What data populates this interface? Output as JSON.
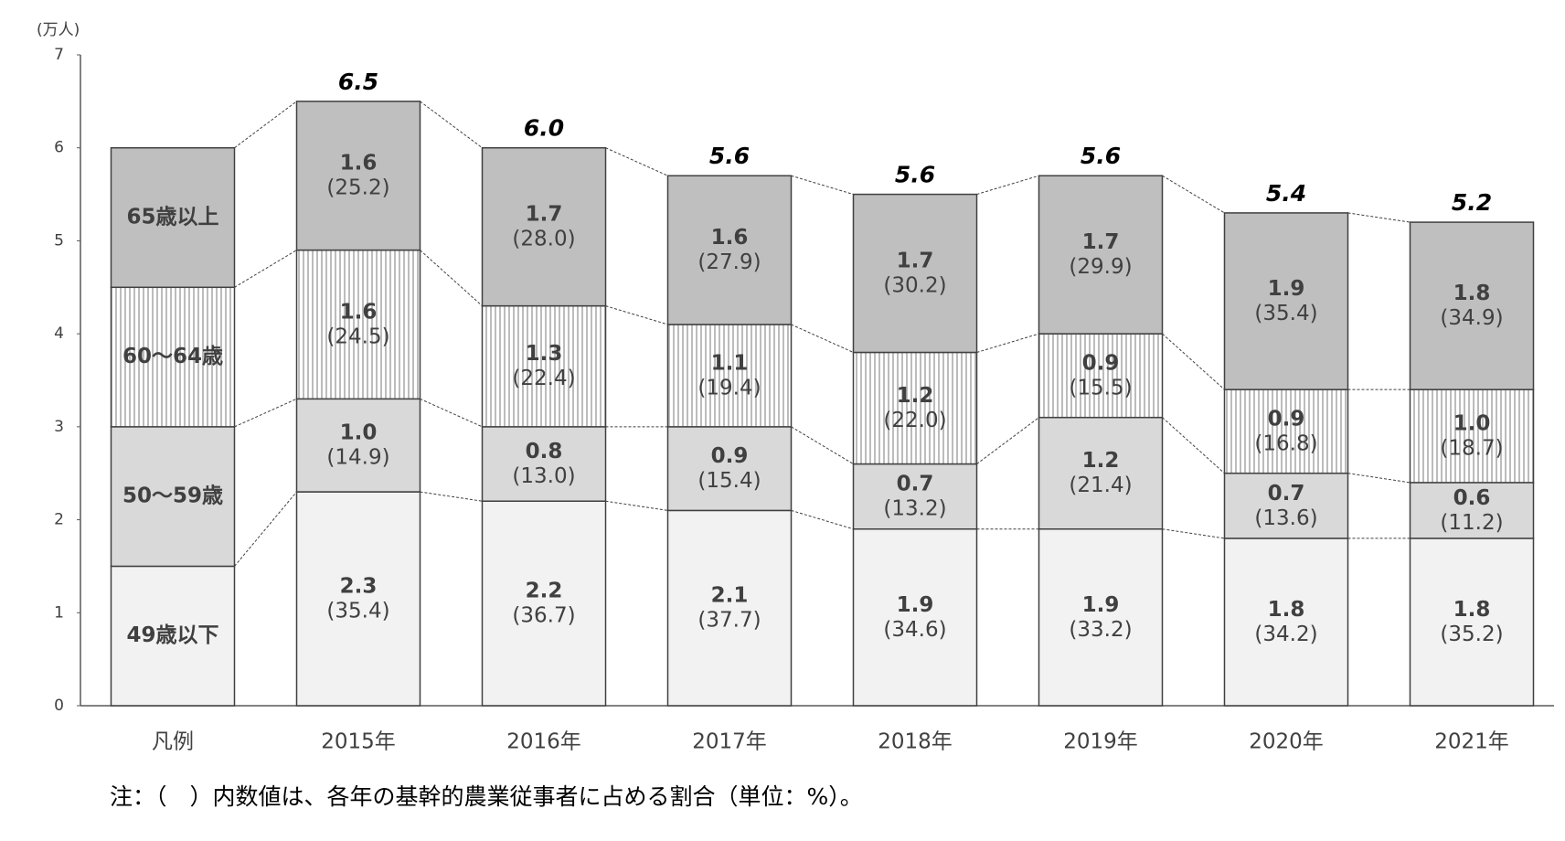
{
  "chart_data": {
    "type": "stacked_bar",
    "ylabel": "(万人)",
    "categories": [
      "凡例",
      "2015年",
      "2016年",
      "2017年",
      "2018年",
      "2019年",
      "2020年",
      "2021年"
    ],
    "ylim": [
      0,
      7
    ],
    "yticks": [
      0,
      1,
      2,
      3,
      4,
      5,
      6,
      7
    ],
    "grid": false,
    "series": [
      {
        "name": "49歳以下",
        "color": "#f2f2f2",
        "values": [
          null,
          2.3,
          2.2,
          2.1,
          1.9,
          1.9,
          1.8,
          1.8
        ],
        "value_labels": [
          null,
          "2.3",
          "2.2",
          "2.1",
          "1.9",
          "1.9",
          "1.8",
          "1.8"
        ],
        "share_labels": [
          null,
          "(35.4)",
          "(36.7)",
          "(37.7)",
          "(34.6)",
          "(33.2)",
          "(34.2)",
          "(35.2)"
        ]
      },
      {
        "name": "50～59歳",
        "color": "#d9d9d9",
        "values": [
          null,
          1.0,
          0.8,
          0.9,
          0.7,
          1.2,
          0.7,
          0.6
        ],
        "value_labels": [
          null,
          "1.0",
          "0.8",
          "0.9",
          "0.7",
          "1.2",
          "0.7",
          "0.6"
        ],
        "share_labels": [
          null,
          "(14.9)",
          "(13.0)",
          "(15.4)",
          "(13.2)",
          "(21.4)",
          "(13.6)",
          "(11.2)"
        ]
      },
      {
        "name": "60～64歳",
        "color": "#ffffff",
        "pattern": "vertical-lines",
        "values": [
          null,
          1.6,
          1.3,
          1.1,
          1.2,
          0.9,
          0.9,
          1.0
        ],
        "value_labels": [
          null,
          "1.6",
          "1.3",
          "1.1",
          "1.2",
          "0.9",
          "0.9",
          "1.0"
        ],
        "share_labels": [
          null,
          "(24.5)",
          "(22.4)",
          "(19.4)",
          "(22.0)",
          "(15.5)",
          "(16.8)",
          "(18.7)"
        ]
      },
      {
        "name": "65歳以上",
        "color": "#bfbfbf",
        "values": [
          null,
          1.6,
          1.7,
          1.6,
          1.7,
          1.7,
          1.9,
          1.8
        ],
        "value_labels": [
          null,
          "1.6",
          "1.7",
          "1.6",
          "1.7",
          "1.7",
          "1.9",
          "1.8"
        ],
        "share_labels": [
          null,
          "(25.2)",
          "(28.0)",
          "(27.9)",
          "(30.2)",
          "(29.9)",
          "(35.4)",
          "(34.9)"
        ]
      }
    ],
    "totals": [
      null,
      6.5,
      6.0,
      5.6,
      5.6,
      5.6,
      5.4,
      5.2
    ],
    "total_labels": [
      null,
      "6.5",
      "6.0",
      "5.6",
      "5.6",
      "5.6",
      "5.4",
      "5.2"
    ],
    "note": "注：（　）内数値は、各年の基幹的農業従事者に占める割合（単位：%）。"
  }
}
